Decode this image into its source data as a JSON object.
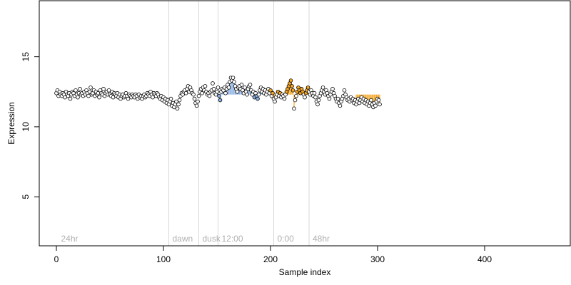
{
  "chart_data": {
    "type": "scatter",
    "title": "",
    "xlabel": "Sample index",
    "ylabel": "Expression",
    "xlim": [
      -16,
      480
    ],
    "ylim": [
      1.5,
      19.0
    ],
    "x_ticks": [
      0,
      100,
      200,
      300,
      400
    ],
    "y_ticks": [
      5,
      10,
      15
    ],
    "grid": false,
    "colors": {
      "up": "#f5a623",
      "down": "#8aaee0",
      "neutral": "#ffffff",
      "marker_edge": "#000000",
      "annotation": "#b0b0b0",
      "divider": "#d9d9d9"
    },
    "baseline": 12.3,
    "annotations": [
      {
        "label": "24hr",
        "x": 3
      },
      {
        "label": "dawn",
        "x": 107
      },
      {
        "label": "dusk",
        "x": 135
      },
      {
        "label": "12:00",
        "x": 153
      },
      {
        "label": "0:00",
        "x": 205
      },
      {
        "label": "48hr",
        "x": 238
      }
    ],
    "dividers": [
      105,
      133,
      151,
      203,
      236
    ],
    "series": [
      {
        "values": [
          12.4,
          12.6,
          12.2,
          12.5,
          12.3,
          12.2,
          12.4,
          12.3,
          12.1,
          12.5,
          12.3,
          12.2,
          12.4,
          12.0,
          12.3,
          12.5,
          12.4,
          12.2,
          12.6,
          12.3,
          12.1,
          12.4,
          12.7,
          12.3,
          12.4,
          12.2,
          12.5,
          12.3,
          12.6,
          12.4,
          12.2,
          12.5,
          12.8,
          12.3,
          12.4,
          12.6,
          12.2,
          12.5,
          12.3,
          12.4,
          12.1,
          12.6,
          12.4,
          12.3,
          12.7,
          12.2,
          12.4,
          12.5,
          12.3,
          12.6,
          12.3,
          12.2,
          12.5,
          12.1,
          12.4,
          12.3,
          12.2,
          12.4,
          12.1,
          12.3,
          12.0,
          12.2,
          12.3,
          12.1,
          12.2,
          12.4,
          12.2,
          12.0,
          12.3,
          12.2,
          12.1,
          12.3,
          12.2,
          12.1,
          12.3,
          12.2,
          12.0,
          12.3,
          12.1,
          12.2,
          12.0,
          12.2,
          12.3,
          12.1,
          12.2,
          12.4,
          12.3,
          12.2,
          12.5,
          12.3,
          12.1,
          12.4,
          12.3,
          12.2,
          12.4,
          12.3,
          12.1,
          12.0,
          12.2,
          11.9,
          12.1,
          11.8,
          12.0,
          11.7,
          11.9,
          11.6,
          11.8,
          12.0,
          11.5,
          11.7,
          11.4,
          11.6,
          11.8,
          11.3,
          11.6,
          11.9,
          12.2,
          12.4,
          12.3,
          12.5,
          12.6,
          12.4,
          12.7,
          12.9,
          12.5,
          12.8,
          12.6,
          12.4,
          12.3,
          12.0,
          11.7,
          11.5,
          11.8,
          12.2,
          12.5,
          12.7,
          12.4,
          12.8,
          12.6,
          12.9,
          12.5,
          12.3,
          12.4,
          12.2,
          12.5,
          12.6,
          13.1,
          12.7,
          12.4,
          12.3,
          12.5,
          12.8,
          12.2,
          11.9,
          12.5,
          12.7,
          12.6,
          12.8,
          12.4,
          12.7,
          13.0,
          12.8,
          13.2,
          13.5,
          13.3,
          13.5,
          13.2,
          12.9,
          12.7,
          12.5,
          12.8,
          12.9,
          12.7,
          13.0,
          12.6,
          12.4,
          12.8,
          12.5,
          12.3,
          12.7,
          12.9,
          13.0,
          12.6,
          12.3,
          12.5,
          12.1,
          12.4,
          12.2,
          12.0,
          12.3,
          12.6,
          12.8,
          12.5,
          12.7,
          12.4,
          12.6,
          12.3,
          12.5,
          12.7,
          12.4,
          12.6,
          12.2,
          12.4,
          12.0,
          11.8,
          12.1,
          12.3,
          12.5,
          12.2,
          12.4,
          12.1,
          12.3,
          12.2,
          12.0,
          12.3,
          12.5,
          12.7,
          12.9,
          13.1,
          13.3,
          12.9,
          12.6,
          11.3,
          11.9,
          12.2,
          12.5,
          12.8,
          12.6,
          12.4,
          12.7,
          12.5,
          12.3,
          12.1,
          12.4,
          12.6,
          12.8,
          12.5,
          12.3,
          12.6,
          12.4,
          12.2,
          12.4,
          12.1,
          11.8,
          11.6,
          11.9,
          12.2,
          12.4,
          12.6,
          12.8,
          12.5,
          12.3,
          12.6,
          12.4,
          12.2,
          12.0,
          12.3,
          12.5,
          12.7,
          12.4,
          12.2,
          12.0,
          11.8,
          12.0,
          11.7,
          11.5,
          11.8,
          12.0,
          12.2,
          12.6,
          12.3,
          12.1,
          11.9,
          12.0,
          11.8,
          12.1,
          11.9,
          12.0,
          11.7,
          11.9,
          11.6,
          11.8,
          12.0,
          11.7,
          11.9,
          12.1,
          11.8,
          12.0,
          11.7,
          11.9,
          11.6,
          11.8,
          11.5,
          11.7,
          11.9,
          11.6,
          11.4,
          11.7,
          11.5,
          11.8,
          12.0,
          11.9,
          11.6
        ]
      }
    ]
  }
}
